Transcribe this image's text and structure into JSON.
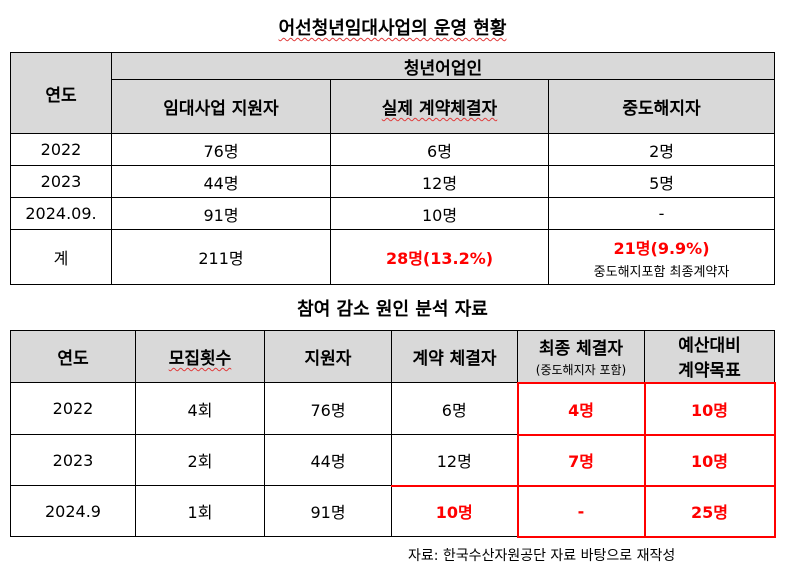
{
  "title1": "어선청년임대사업의 운영 현황",
  "table1": {
    "col_year": "연도",
    "group_header": "청년어업인",
    "col_support": "임대사업 지원자",
    "col_contract": "실제 계약체결자",
    "col_cancel": "중도해지자",
    "rows": [
      {
        "year": "2022",
        "support": "76명",
        "contract": "6명",
        "cancel": "2명"
      },
      {
        "year": "2023",
        "support": "44명",
        "contract": "12명",
        "cancel": "5명"
      },
      {
        "year": "2024.09.",
        "support": "91명",
        "contract": "10명",
        "cancel": "-"
      }
    ],
    "total": {
      "label": "계",
      "support": "211명",
      "contract": "28명(13.2%)",
      "cancel": "21명(9.9%)",
      "cancel_note": "중도해지포함 최종계약자"
    }
  },
  "title2": "참여 감소 원인 분석 자료",
  "table2": {
    "headers": {
      "year": "연도",
      "rounds": "모집횟수",
      "applicants": "지원자",
      "contracts": "계약 체결자",
      "final": "최종 체결자",
      "final_note": "(중도해지자 포함)",
      "target_line1": "예산대비",
      "target_line2": "계약목표"
    },
    "rows": [
      {
        "year": "2022",
        "rounds": "4회",
        "applicants": "76명",
        "contracts": "6명",
        "final": "4명",
        "target": "10명"
      },
      {
        "year": "2023",
        "rounds": "2회",
        "applicants": "44명",
        "contracts": "12명",
        "final": "7명",
        "target": "10명"
      },
      {
        "year": "2024.9",
        "rounds": "1회",
        "applicants": "91명",
        "contracts": "10명",
        "final": "-",
        "target": "25명"
      }
    ]
  },
  "source": "자료: 한국수산자원공단 자료 바탕으로 재작성"
}
